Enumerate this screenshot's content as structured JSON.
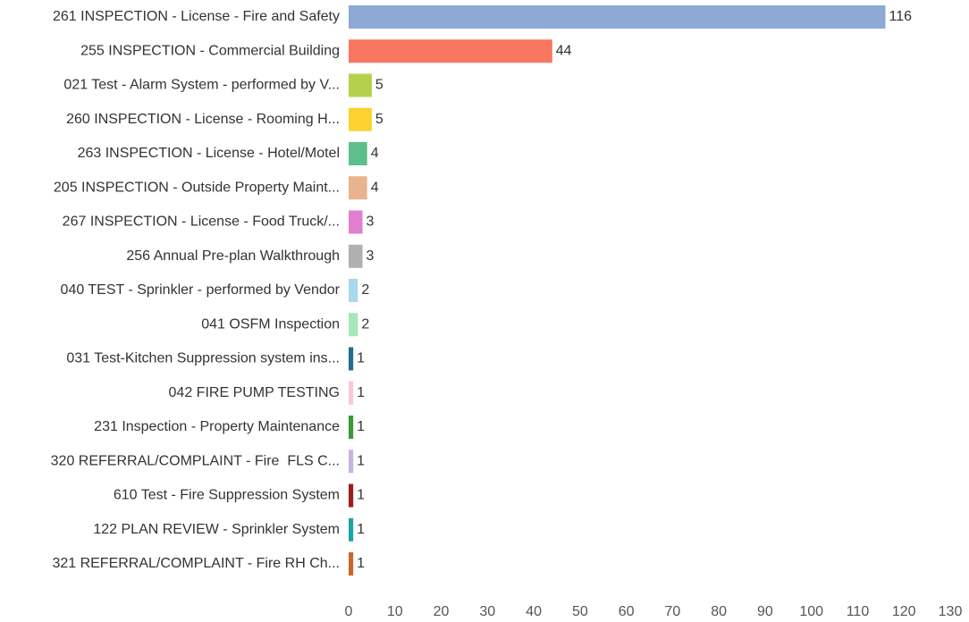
{
  "chart_data": {
    "type": "bar",
    "orientation": "horizontal",
    "categories": [
      "261 INSPECTION - License - Fire and Safety",
      "255 INSPECTION - Commercial Building",
      "021 Test - Alarm System - performed by V...",
      "260 INSPECTION - License - Rooming H...",
      "263 INSPECTION - License - Hotel/Motel",
      "205 INSPECTION - Outside Property Maint...",
      "267 INSPECTION - License - Food Truck/...",
      "256 Annual Pre-plan Walkthrough",
      "040 TEST - Sprinkler - performed by Vendor",
      "041 OSFM Inspection",
      "031 Test-Kitchen Suppression system ins...",
      "042 FIRE PUMP TESTING",
      "231 Inspection - Property Maintenance",
      "320 REFERRAL/COMPLAINT - Fire  FLS C...",
      "610 Test - Fire Suppression System",
      "122 PLAN REVIEW - Sprinkler System",
      "321 REFERRAL/COMPLAINT - Fire RH Ch..."
    ],
    "values": [
      116,
      44,
      5,
      5,
      4,
      4,
      3,
      3,
      2,
      2,
      1,
      1,
      1,
      1,
      1,
      1,
      1
    ],
    "colors": [
      "#8eaad4",
      "#f97660",
      "#b5d14c",
      "#fbd22f",
      "#5dbf8c",
      "#e8b38f",
      "#e07fcf",
      "#b0b0b0",
      "#a8d8ea",
      "#a8e6b8",
      "#1f6f8b",
      "#f8c8d4",
      "#3a9a3a",
      "#c7b3e0",
      "#a01c1c",
      "#1aa6a6",
      "#c9662a"
    ],
    "xlim": [
      0,
      130
    ],
    "xticks": [
      0,
      10,
      20,
      30,
      40,
      50,
      60,
      70,
      80,
      90,
      100,
      110,
      120,
      130
    ],
    "grid": false
  }
}
